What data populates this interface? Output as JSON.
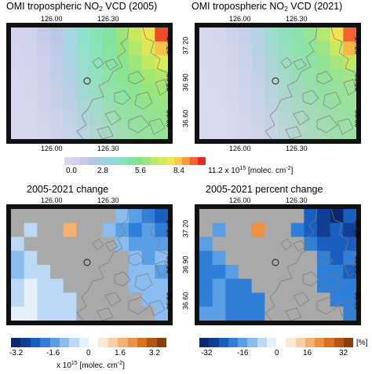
{
  "panels": [
    {
      "title_prefix": "OMI tropospheric NO",
      "title_sub": "2",
      "title_suffix": " VCD (2005)"
    },
    {
      "title_prefix": "OMI tropospheric NO",
      "title_sub": "2",
      "title_suffix": " VCD (2021)"
    },
    {
      "title_prefix": "2005-2021 change",
      "title_sub": "",
      "title_suffix": ""
    },
    {
      "title_prefix": "2005-2021 percent change",
      "title_sub": "",
      "title_suffix": ""
    }
  ],
  "lon_ticks": [
    "126.00",
    "126.30"
  ],
  "lat_ticks": [
    "37.20",
    "36.90",
    "36.60"
  ],
  "colorbar_vcd": {
    "ticks": [
      "0.0",
      "2.8",
      "5.6",
      "8.4",
      "11.2"
    ],
    "unit_base": "x 10",
    "unit_exp": "15",
    "unit_rest": " [molec. cm",
    "unit_exp2": "-2",
    "unit_end": "]",
    "colors": [
      "#d8d8ec",
      "#cfd2ea",
      "#c2cae8",
      "#b8c6e6",
      "#a9cbe6",
      "#9bd3e2",
      "#8edbd6",
      "#84e0c1",
      "#7fe3a6",
      "#86e38c",
      "#9de67a",
      "#b6e86a",
      "#d2ea5d",
      "#eee652",
      "#fcc94a",
      "#fb9a3d",
      "#f6622f",
      "#e52a22"
    ]
  },
  "colorbar_change": {
    "ticks": [
      "-3.2",
      "-1.6",
      "0",
      "1.6",
      "3.2"
    ],
    "unit_base": "x 10",
    "unit_exp": "15",
    "unit_rest": " [molec. cm",
    "unit_exp2": "-2",
    "unit_end": "]",
    "colors": [
      "#0b2a6e",
      "#113f94",
      "#1a5fbf",
      "#2f7fd9",
      "#5a9ee6",
      "#8bbcef",
      "#bcd8f6",
      "#e6f0fb",
      "#ffffff",
      "#fbe9d6",
      "#f8cfa2",
      "#f4b06d",
      "#ec9041",
      "#d9711e",
      "#b4560f",
      "#8a3f08"
    ]
  },
  "colorbar_percent": {
    "ticks": [
      "-32",
      "-16",
      "0",
      "16",
      "32"
    ],
    "unit": "[%]",
    "colors": [
      "#0b2a6e",
      "#113f94",
      "#1a5fbf",
      "#2f7fd9",
      "#5a9ee6",
      "#8bbcef",
      "#bcd8f6",
      "#e6f0fb",
      "#ffffff",
      "#fbe9d6",
      "#f8cfa2",
      "#f4b06d",
      "#ec9041",
      "#d9711e",
      "#b4560f",
      "#8a3f08"
    ]
  },
  "grids": {
    "vcd2005": [
      [
        "#d2d3ee",
        "#cfd3ec",
        "#c5cce9",
        "#b9c8e7",
        "#a6d7e3",
        "#91e0ce",
        "#86e3b8",
        "#82e39e",
        "#9be57c",
        "#c9ea5f",
        "#f2e250",
        "#ef4a2a"
      ],
      [
        "#d3d5ee",
        "#d0d4ec",
        "#c8cee9",
        "#bdcbe7",
        "#aad6e3",
        "#95dfce",
        "#89e3b8",
        "#84e39e",
        "#92e482",
        "#b4e86b",
        "#dde856",
        "#f8c24a"
      ],
      [
        "#d4d6ee",
        "#d1d5ec",
        "#cad0e9",
        "#bfcce7",
        "#add4e3",
        "#99ddce",
        "#8de2b8",
        "#88e3a2",
        "#8be48d",
        "#9ee67a",
        "#c2e963",
        "#ddea58"
      ],
      [
        "#d4d7ee",
        "#d2d6ec",
        "#ccd1e9",
        "#c2cde7",
        "#b2d2e3",
        "#9fdacf",
        "#93e0bd",
        "#8de3a6",
        "#89e493",
        "#8fe585",
        "#a5e673",
        "#b4e86a"
      ],
      [
        "#d5d8ee",
        "#d3d7ec",
        "#cdd2ea",
        "#c5cfe8",
        "#b7d0e4",
        "#a5d7d3",
        "#99ddc3",
        "#92e1ad",
        "#8de49a",
        "#8ce48e",
        "#97e57f",
        "#a0e676"
      ],
      [
        "#d5d8ee",
        "#d4d8ec",
        "#cfd3ea",
        "#c8d0e8",
        "#bcd0e5",
        "#acd5d8",
        "#a0dac8",
        "#98deb4",
        "#92e2a2",
        "#8fe396",
        "#91e48c",
        "#97e584"
      ],
      [
        "#d6d9ee",
        "#d5d9ed",
        "#d1d5ea",
        "#cbd2e9",
        "#c1d1e6",
        "#b3d4dc",
        "#a8d8cd",
        "#9fdcbb",
        "#98dfaa",
        "#94e19f",
        "#93e295",
        "#95e38e"
      ],
      [
        "#d6d9ee",
        "#d5d9ed",
        "#d2d6eb",
        "#cdd4e9",
        "#c5d2e7",
        "#b9d4df",
        "#afd6d1",
        "#a6d9c1",
        "#9fdcb2",
        "#9adea7",
        "#97e09d",
        "#97e197"
      ]
    ],
    "vcd2021": [
      [
        "#d5d8ee",
        "#d3d7ec",
        "#cdd3ea",
        "#c5cfe8",
        "#b3d4e4",
        "#9edcd1",
        "#90e0bf",
        "#8be2ac",
        "#96e494",
        "#b4e872",
        "#f2e252",
        "#f4632f"
      ],
      [
        "#d6d9ee",
        "#d4d8ec",
        "#cfd4ea",
        "#c8d1e8",
        "#b8d2e5",
        "#a4d9d3",
        "#96dec2",
        "#8fe1ae",
        "#8fe39c",
        "#a0e584",
        "#c9ea60",
        "#f7b645"
      ],
      [
        "#d6d9ee",
        "#d5d9ec",
        "#d0d5ea",
        "#cad2e8",
        "#bdd1e5",
        "#abd6d5",
        "#9cdcc5",
        "#94dfb3",
        "#8fe2a3",
        "#94e392",
        "#a9e67a",
        "#c2e862"
      ],
      [
        "#d7daee",
        "#d5d9ed",
        "#d2d6ea",
        "#ccd3e9",
        "#c1d1e6",
        "#b1d4d8",
        "#a3d9c9",
        "#9adcb8",
        "#95dfa8",
        "#93e19c",
        "#9ae390",
        "#a3e586"
      ],
      [
        "#d7daee",
        "#d6daed",
        "#d3d7eb",
        "#ced4e9",
        "#c5d2e7",
        "#b8d3dc",
        "#aad7cd",
        "#a0dabd",
        "#99ddae",
        "#96dfa3",
        "#97e19a",
        "#9be294"
      ],
      [
        "#d7daee",
        "#d6daed",
        "#d4d8eb",
        "#d0d5e9",
        "#c9d3e7",
        "#bed3df",
        "#b1d6d1",
        "#a7d9c2",
        "#a0dbb4",
        "#9bdeaa",
        "#99e0a0",
        "#9ae19b"
      ],
      [
        "#d8dbee",
        "#d7dbed",
        "#d5d9eb",
        "#d2d6ea",
        "#ccd4e8",
        "#c3d3e2",
        "#b8d5d5",
        "#aed7c7",
        "#a6daba",
        "#a0dcb0",
        "#9cdea6",
        "#9be0a0"
      ],
      [
        "#d8dbee",
        "#d7dbed",
        "#d5d9eb",
        "#d3d7ea",
        "#ced5e8",
        "#c7d4e3",
        "#bdd5d8",
        "#b3d7cb",
        "#abd9bf",
        "#a5dbb5",
        "#a0ddac",
        "#9ddfa5"
      ]
    ],
    "change": [
      [
        "#a9a9a9",
        "#a9a9a9",
        "#a9a9a9",
        "#a9a9a9",
        "#a9a9a9",
        "#a9a9a9",
        "#a9a9a9",
        "#a9a9a9",
        "#8bbcef",
        "#5a9ee6",
        "#2f7fd9",
        "#1a5fbf"
      ],
      [
        "#a9a9a9",
        "#bcd8f6",
        "#a9a9a9",
        "#a9a9a9",
        "#f4b06d",
        "#a9a9a9",
        "#a9a9a9",
        "#8bbcef",
        "#5a9ee6",
        "#2f7fd9",
        "#5a9ee6",
        "#2f7fd9"
      ],
      [
        "#bcd8f6",
        "#a9a9a9",
        "#a9a9a9",
        "#a9a9a9",
        "#a9a9a9",
        "#a9a9a9",
        "#a9a9a9",
        "#a9a9a9",
        "#8bbcef",
        "#5a9ee6",
        "#5a9ee6",
        "#5a9ee6"
      ],
      [
        "#8bbcef",
        "#bcd8f6",
        "#a9a9a9",
        "#a9a9a9",
        "#a9a9a9",
        "#a9a9a9",
        "#a9a9a9",
        "#a9a9a9",
        "#a9a9a9",
        "#8bbcef",
        "#5a9ee6",
        "#8bbcef"
      ],
      [
        "#8bbcef",
        "#bcd8f6",
        "#bcd8f6",
        "#a9a9a9",
        "#a9a9a9",
        "#a9a9a9",
        "#a9a9a9",
        "#a9a9a9",
        "#a9a9a9",
        "#8bbcef",
        "#8bbcef",
        "#5a9ee6"
      ],
      [
        "#bcd8f6",
        "#e6f0fb",
        "#bcd8f6",
        "#bcd8f6",
        "#a9a9a9",
        "#a9a9a9",
        "#a9a9a9",
        "#a9a9a9",
        "#a9a9a9",
        "#8bbcef",
        "#8bbcef",
        "#8bbcef"
      ],
      [
        "#bcd8f6",
        "#e6f0fb",
        "#bcd8f6",
        "#bcd8f6",
        "#bcd8f6",
        "#a9a9a9",
        "#a9a9a9",
        "#a9a9a9",
        "#a9a9a9",
        "#a9a9a9",
        "#8bbcef",
        "#8bbcef"
      ],
      [
        "#e6f0fb",
        "#e6f0fb",
        "#bcd8f6",
        "#bcd8f6",
        "#bcd8f6",
        "#a9a9a9",
        "#a9a9a9",
        "#a9a9a9",
        "#a9a9a9",
        "#a9a9a9",
        "#a9a9a9",
        "#8bbcef"
      ]
    ],
    "percent": [
      [
        "#a9a9a9",
        "#a9a9a9",
        "#a9a9a9",
        "#a9a9a9",
        "#a9a9a9",
        "#a9a9a9",
        "#a9a9a9",
        "#a9a9a9",
        "#1a5fbf",
        "#113f94",
        "#0b2a6e",
        "#1a5fbf"
      ],
      [
        "#a9a9a9",
        "#5a9ee6",
        "#a9a9a9",
        "#a9a9a9",
        "#ec9041",
        "#a9a9a9",
        "#a9a9a9",
        "#2f7fd9",
        "#1a5fbf",
        "#113f94",
        "#1a5fbf",
        "#113f94"
      ],
      [
        "#5a9ee6",
        "#a9a9a9",
        "#a9a9a9",
        "#a9a9a9",
        "#a9a9a9",
        "#a9a9a9",
        "#a9a9a9",
        "#a9a9a9",
        "#2f7fd9",
        "#1a5fbf",
        "#1a5fbf",
        "#1a5fbf"
      ],
      [
        "#2f7fd9",
        "#5a9ee6",
        "#a9a9a9",
        "#a9a9a9",
        "#a9a9a9",
        "#a9a9a9",
        "#a9a9a9",
        "#a9a9a9",
        "#a9a9a9",
        "#2f7fd9",
        "#1a5fbf",
        "#2f7fd9"
      ],
      [
        "#2f7fd9",
        "#2f7fd9",
        "#5a9ee6",
        "#a9a9a9",
        "#a9a9a9",
        "#a9a9a9",
        "#a9a9a9",
        "#a9a9a9",
        "#a9a9a9",
        "#2f7fd9",
        "#2f7fd9",
        "#1a5fbf"
      ],
      [
        "#2f7fd9",
        "#5a9ee6",
        "#2f7fd9",
        "#2f7fd9",
        "#a9a9a9",
        "#a9a9a9",
        "#a9a9a9",
        "#a9a9a9",
        "#a9a9a9",
        "#2f7fd9",
        "#2f7fd9",
        "#2f7fd9"
      ],
      [
        "#2f7fd9",
        "#5a9ee6",
        "#2f7fd9",
        "#2f7fd9",
        "#2f7fd9",
        "#a9a9a9",
        "#a9a9a9",
        "#a9a9a9",
        "#a9a9a9",
        "#a9a9a9",
        "#2f7fd9",
        "#2f7fd9"
      ],
      [
        "#5a9ee6",
        "#5a9ee6",
        "#2f7fd9",
        "#2f7fd9",
        "#2f7fd9",
        "#a9a9a9",
        "#a9a9a9",
        "#a9a9a9",
        "#a9a9a9",
        "#a9a9a9",
        "#a9a9a9",
        "#2f7fd9"
      ]
    ]
  }
}
